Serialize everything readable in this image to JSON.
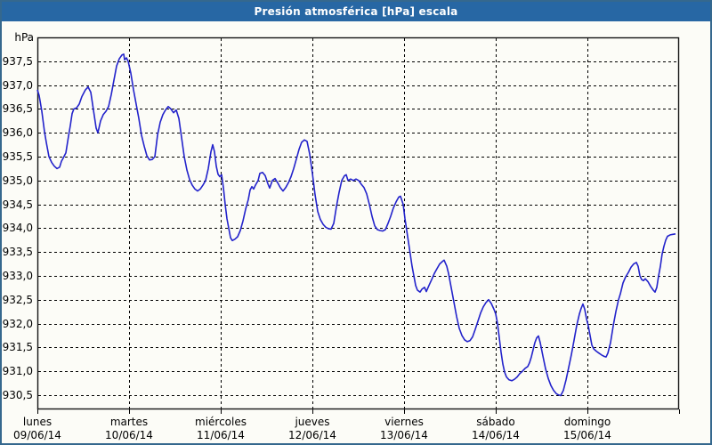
{
  "window": {
    "title": "Presión atmosférica [hPa] escala"
  },
  "colors": {
    "titlebar_bg": "#2767a4",
    "frame_border": "#35688e",
    "line": "#2323cb",
    "grid": "#000000",
    "plot_border": "#151515",
    "background": "#fcfcf7",
    "title_text": "#ffffff",
    "label_text": "#000000"
  },
  "chart_data": {
    "type": "line",
    "title": "Presión atmosférica [hPa] escala",
    "grid": "dashed",
    "legend": "none",
    "y_axis": {
      "unit": "hPa",
      "min": 930.2,
      "max": 938.0,
      "tick_step": 0.5,
      "tick_values": [
        937.5,
        937.0,
        936.5,
        936.0,
        935.5,
        935.0,
        934.5,
        934.0,
        933.5,
        933.0,
        932.5,
        932.0,
        931.5,
        931.0,
        930.5
      ],
      "tick_labels": [
        "937,5",
        "937,0",
        "936,5",
        "936,0",
        "935,5",
        "935,0",
        "934,5",
        "934,0",
        "933,5",
        "933,0",
        "932,5",
        "932,0",
        "931,5",
        "931,0",
        "930,5"
      ]
    },
    "x_axis": {
      "span_days": 7,
      "days": [
        {
          "name": "lunes",
          "date": "09/06/14"
        },
        {
          "name": "martes",
          "date": "10/06/14"
        },
        {
          "name": "miércoles",
          "date": "11/06/14"
        },
        {
          "name": "jueves",
          "date": "12/06/14"
        },
        {
          "name": "viernes",
          "date": "13/06/14"
        },
        {
          "name": "sábado",
          "date": "14/06/14"
        },
        {
          "name": "domingo",
          "date": "15/06/14"
        }
      ]
    },
    "series": [
      {
        "name": "Presión atmosférica",
        "color": "#2323cb",
        "points": [
          [
            0.0,
            936.9
          ],
          [
            0.019,
            936.78
          ],
          [
            0.049,
            936.45
          ],
          [
            0.078,
            936.02
          ],
          [
            0.097,
            935.8
          ],
          [
            0.126,
            935.5
          ],
          [
            0.155,
            935.38
          ],
          [
            0.184,
            935.3
          ],
          [
            0.214,
            935.25
          ],
          [
            0.243,
            935.28
          ],
          [
            0.262,
            935.4
          ],
          [
            0.282,
            935.47
          ],
          [
            0.311,
            935.58
          ],
          [
            0.34,
            935.93
          ],
          [
            0.359,
            936.15
          ],
          [
            0.379,
            936.4
          ],
          [
            0.398,
            936.5
          ],
          [
            0.427,
            936.52
          ],
          [
            0.456,
            936.6
          ],
          [
            0.485,
            936.76
          ],
          [
            0.524,
            936.9
          ],
          [
            0.553,
            936.96
          ],
          [
            0.583,
            936.85
          ],
          [
            0.602,
            936.6
          ],
          [
            0.621,
            936.35
          ],
          [
            0.641,
            936.1
          ],
          [
            0.66,
            936.0
          ],
          [
            0.689,
            936.25
          ],
          [
            0.718,
            936.38
          ],
          [
            0.748,
            936.45
          ],
          [
            0.777,
            936.55
          ],
          [
            0.806,
            936.8
          ],
          [
            0.835,
            937.1
          ],
          [
            0.864,
            937.4
          ],
          [
            0.893,
            937.55
          ],
          [
            0.922,
            937.63
          ],
          [
            0.942,
            937.65
          ],
          [
            0.951,
            937.53
          ],
          [
            0.971,
            937.57
          ],
          [
            0.99,
            937.5
          ],
          [
            1.019,
            937.25
          ],
          [
            1.049,
            936.9
          ],
          [
            1.078,
            936.6
          ],
          [
            1.107,
            936.3
          ],
          [
            1.136,
            935.95
          ],
          [
            1.165,
            935.72
          ],
          [
            1.194,
            935.52
          ],
          [
            1.223,
            935.43
          ],
          [
            1.252,
            935.44
          ],
          [
            1.282,
            935.5
          ],
          [
            1.311,
            935.95
          ],
          [
            1.34,
            936.22
          ],
          [
            1.369,
            936.38
          ],
          [
            1.398,
            936.48
          ],
          [
            1.427,
            936.55
          ],
          [
            1.456,
            936.5
          ],
          [
            1.485,
            936.42
          ],
          [
            1.515,
            936.48
          ],
          [
            1.544,
            936.3
          ],
          [
            1.573,
            935.9
          ],
          [
            1.602,
            935.5
          ],
          [
            1.631,
            935.22
          ],
          [
            1.66,
            935.02
          ],
          [
            1.689,
            934.9
          ],
          [
            1.718,
            934.82
          ],
          [
            1.748,
            934.78
          ],
          [
            1.777,
            934.82
          ],
          [
            1.806,
            934.9
          ],
          [
            1.835,
            935.0
          ],
          [
            1.864,
            935.25
          ],
          [
            1.893,
            935.6
          ],
          [
            1.913,
            935.75
          ],
          [
            1.932,
            935.6
          ],
          [
            1.951,
            935.3
          ],
          [
            1.971,
            935.13
          ],
          [
            1.99,
            935.08
          ],
          [
            2.01,
            935.12
          ],
          [
            2.029,
            934.85
          ],
          [
            2.049,
            934.5
          ],
          [
            2.068,
            934.2
          ],
          [
            2.087,
            934.0
          ],
          [
            2.107,
            933.8
          ],
          [
            2.126,
            933.74
          ],
          [
            2.155,
            933.77
          ],
          [
            2.184,
            933.82
          ],
          [
            2.214,
            933.95
          ],
          [
            2.243,
            934.15
          ],
          [
            2.272,
            934.4
          ],
          [
            2.301,
            934.6
          ],
          [
            2.32,
            934.8
          ],
          [
            2.34,
            934.87
          ],
          [
            2.359,
            934.82
          ],
          [
            2.379,
            934.9
          ],
          [
            2.408,
            935.0
          ],
          [
            2.427,
            935.15
          ],
          [
            2.456,
            935.17
          ],
          [
            2.485,
            935.1
          ],
          [
            2.515,
            934.93
          ],
          [
            2.534,
            934.84
          ],
          [
            2.563,
            935.0
          ],
          [
            2.592,
            935.04
          ],
          [
            2.621,
            934.95
          ],
          [
            2.65,
            934.85
          ],
          [
            2.68,
            934.78
          ],
          [
            2.709,
            934.85
          ],
          [
            2.738,
            934.95
          ],
          [
            2.767,
            935.08
          ],
          [
            2.796,
            935.25
          ],
          [
            2.825,
            935.45
          ],
          [
            2.854,
            935.65
          ],
          [
            2.883,
            935.8
          ],
          [
            2.913,
            935.85
          ],
          [
            2.942,
            935.82
          ],
          [
            2.971,
            935.55
          ],
          [
            3.0,
            935.15
          ],
          [
            3.029,
            934.7
          ],
          [
            3.058,
            934.35
          ],
          [
            3.087,
            934.18
          ],
          [
            3.117,
            934.08
          ],
          [
            3.146,
            934.02
          ],
          [
            3.175,
            933.99
          ],
          [
            3.204,
            933.98
          ],
          [
            3.233,
            934.1
          ],
          [
            3.262,
            934.45
          ],
          [
            3.291,
            934.75
          ],
          [
            3.32,
            935.0
          ],
          [
            3.35,
            935.1
          ],
          [
            3.369,
            935.12
          ],
          [
            3.388,
            935.0
          ],
          [
            3.417,
            935.03
          ],
          [
            3.447,
            935.0
          ],
          [
            3.476,
            935.03
          ],
          [
            3.505,
            935.0
          ],
          [
            3.534,
            934.92
          ],
          [
            3.563,
            934.85
          ],
          [
            3.592,
            934.72
          ],
          [
            3.621,
            934.5
          ],
          [
            3.65,
            934.25
          ],
          [
            3.68,
            934.05
          ],
          [
            3.709,
            933.97
          ],
          [
            3.738,
            933.95
          ],
          [
            3.767,
            933.94
          ],
          [
            3.796,
            933.97
          ],
          [
            3.825,
            934.1
          ],
          [
            3.854,
            934.25
          ],
          [
            3.883,
            934.42
          ],
          [
            3.913,
            934.55
          ],
          [
            3.942,
            934.65
          ],
          [
            3.961,
            934.67
          ],
          [
            3.99,
            934.5
          ],
          [
            4.01,
            934.2
          ],
          [
            4.029,
            933.95
          ],
          [
            4.049,
            933.7
          ],
          [
            4.068,
            933.45
          ],
          [
            4.087,
            933.2
          ],
          [
            4.107,
            933.0
          ],
          [
            4.126,
            932.8
          ],
          [
            4.146,
            932.7
          ],
          [
            4.175,
            932.66
          ],
          [
            4.194,
            932.72
          ],
          [
            4.223,
            932.76
          ],
          [
            4.243,
            932.67
          ],
          [
            4.272,
            932.8
          ],
          [
            4.301,
            932.92
          ],
          [
            4.33,
            933.05
          ],
          [
            4.359,
            933.15
          ],
          [
            4.388,
            933.25
          ],
          [
            4.417,
            933.3
          ],
          [
            4.437,
            933.33
          ],
          [
            4.466,
            933.2
          ],
          [
            4.485,
            933.05
          ],
          [
            4.515,
            932.75
          ],
          [
            4.544,
            932.45
          ],
          [
            4.573,
            932.15
          ],
          [
            4.602,
            931.9
          ],
          [
            4.631,
            931.75
          ],
          [
            4.66,
            931.66
          ],
          [
            4.689,
            931.62
          ],
          [
            4.718,
            931.64
          ],
          [
            4.748,
            931.72
          ],
          [
            4.777,
            931.88
          ],
          [
            4.806,
            932.05
          ],
          [
            4.835,
            932.22
          ],
          [
            4.864,
            932.35
          ],
          [
            4.893,
            932.44
          ],
          [
            4.922,
            932.5
          ],
          [
            4.951,
            932.42
          ],
          [
            4.981,
            932.3
          ],
          [
            5.0,
            932.2
          ],
          [
            5.019,
            932.0
          ],
          [
            5.039,
            931.7
          ],
          [
            5.058,
            931.4
          ],
          [
            5.078,
            931.15
          ],
          [
            5.097,
            930.98
          ],
          [
            5.117,
            930.88
          ],
          [
            5.146,
            930.82
          ],
          [
            5.175,
            930.8
          ],
          [
            5.204,
            930.83
          ],
          [
            5.233,
            930.88
          ],
          [
            5.262,
            930.95
          ],
          [
            5.291,
            931.0
          ],
          [
            5.32,
            931.06
          ],
          [
            5.35,
            931.1
          ],
          [
            5.369,
            931.18
          ],
          [
            5.388,
            931.3
          ],
          [
            5.408,
            931.45
          ],
          [
            5.427,
            931.6
          ],
          [
            5.447,
            931.7
          ],
          [
            5.466,
            931.74
          ],
          [
            5.485,
            931.6
          ],
          [
            5.515,
            931.32
          ],
          [
            5.544,
            931.05
          ],
          [
            5.573,
            930.85
          ],
          [
            5.602,
            930.7
          ],
          [
            5.631,
            930.6
          ],
          [
            5.66,
            930.53
          ],
          [
            5.689,
            930.5
          ],
          [
            5.709,
            930.49
          ],
          [
            5.738,
            930.6
          ],
          [
            5.767,
            930.82
          ],
          [
            5.796,
            931.08
          ],
          [
            5.825,
            931.35
          ],
          [
            5.854,
            931.65
          ],
          [
            5.883,
            931.95
          ],
          [
            5.913,
            932.2
          ],
          [
            5.932,
            932.32
          ],
          [
            5.951,
            932.41
          ],
          [
            5.971,
            932.3
          ],
          [
            5.99,
            932.1
          ],
          [
            6.01,
            931.95
          ],
          [
            6.029,
            931.75
          ],
          [
            6.049,
            931.55
          ],
          [
            6.068,
            931.47
          ],
          [
            6.097,
            931.42
          ],
          [
            6.126,
            931.38
          ],
          [
            6.155,
            931.34
          ],
          [
            6.184,
            931.31
          ],
          [
            6.204,
            931.3
          ],
          [
            6.223,
            931.38
          ],
          [
            6.252,
            931.6
          ],
          [
            6.282,
            931.95
          ],
          [
            6.311,
            932.25
          ],
          [
            6.34,
            932.5
          ],
          [
            6.359,
            932.62
          ],
          [
            6.388,
            932.85
          ],
          [
            6.417,
            932.98
          ],
          [
            6.447,
            933.07
          ],
          [
            6.476,
            933.18
          ],
          [
            6.505,
            933.25
          ],
          [
            6.534,
            933.28
          ],
          [
            6.553,
            933.2
          ],
          [
            6.573,
            933.0
          ],
          [
            6.592,
            932.92
          ],
          [
            6.612,
            932.9
          ],
          [
            6.631,
            932.94
          ],
          [
            6.66,
            932.88
          ],
          [
            6.689,
            932.78
          ],
          [
            6.718,
            932.7
          ],
          [
            6.738,
            932.66
          ],
          [
            6.757,
            932.76
          ],
          [
            6.777,
            933.0
          ],
          [
            6.796,
            933.2
          ],
          [
            6.815,
            933.45
          ],
          [
            6.835,
            933.62
          ],
          [
            6.854,
            933.75
          ],
          [
            6.874,
            933.83
          ],
          [
            6.903,
            933.86
          ],
          [
            6.932,
            933.87
          ],
          [
            6.961,
            933.88
          ]
        ]
      }
    ]
  }
}
